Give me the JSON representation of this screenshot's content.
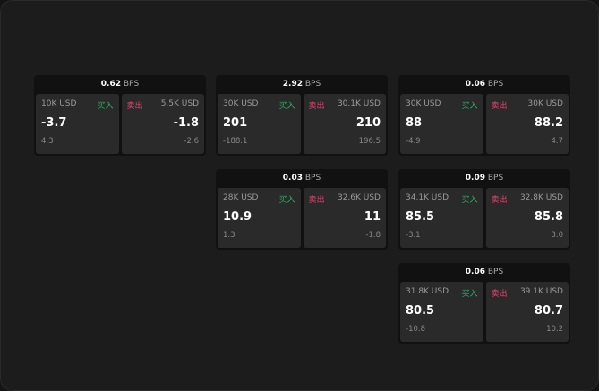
{
  "unit": "BPS",
  "buy_label": "买入",
  "sell_label": "卖出",
  "widgets": [
    {
      "spread": "0.62",
      "bid_size": "10K USD",
      "bid": "-3.7",
      "bid_sub": "4.3",
      "ask_size": "5.5K USD",
      "ask": "-1.8",
      "ask_sub": "-2.6"
    },
    {
      "spread": "2.92",
      "bid_size": "30K USD",
      "bid": "201",
      "bid_sub": "-188.1",
      "ask_size": "30.1K USD",
      "ask": "210",
      "ask_sub": "196.5"
    },
    {
      "spread": "0.06",
      "bid_size": "30K USD",
      "bid": "88",
      "bid_sub": "-4.9",
      "ask_size": "30K USD",
      "ask": "88.2",
      "ask_sub": "4.7"
    },
    {
      "spread": "0.03",
      "bid_size": "28K USD",
      "bid": "10.9",
      "bid_sub": "1.3",
      "ask_size": "32.6K USD",
      "ask": "11",
      "ask_sub": "-1.8"
    },
    {
      "spread": "0.09",
      "bid_size": "34.1K USD",
      "bid": "85.5",
      "bid_sub": "-3.1",
      "ask_size": "32.8K USD",
      "ask": "85.8",
      "ask_sub": "3.0"
    },
    {
      "spread": "0.06",
      "bid_size": "31.8K USD",
      "bid": "80.5",
      "bid_sub": "-10.8",
      "ask_size": "39.1K USD",
      "ask": "80.7",
      "ask_sub": "10.2"
    }
  ]
}
